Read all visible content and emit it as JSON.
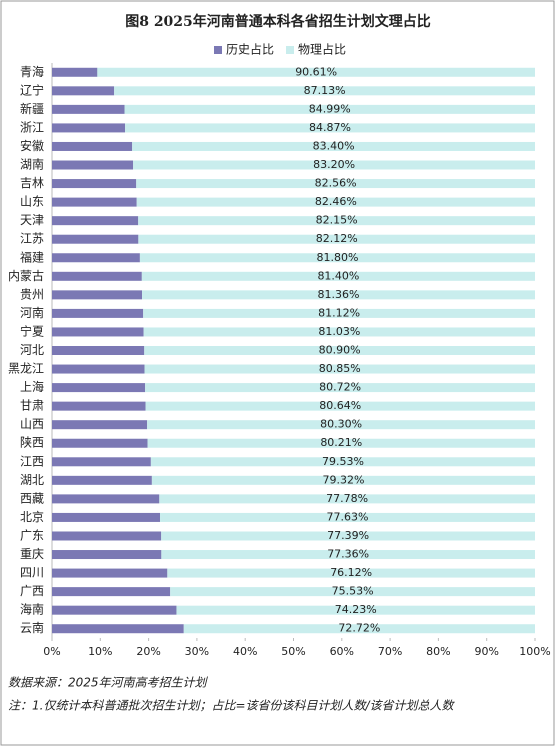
{
  "chart_data": {
    "type": "stacked_barh",
    "title": "图8 2025年河南普通本科各省招生计划文理占比",
    "categories": [
      "青海",
      "辽宁",
      "新疆",
      "浙江",
      "安徽",
      "湖南",
      "吉林",
      "山东",
      "天津",
      "江苏",
      "福建",
      "内蒙古",
      "贵州",
      "河南",
      "宁夏",
      "河北",
      "黑龙江",
      "上海",
      "甘肃",
      "山西",
      "陕西",
      "江西",
      "湖北",
      "西藏",
      "北京",
      "广东",
      "重庆",
      "四川",
      "广西",
      "海南",
      "云南"
    ],
    "series": [
      {
        "name": "历史占比",
        "color": "#7b78b4",
        "values": [
          9.39,
          12.87,
          15.01,
          15.13,
          16.6,
          16.8,
          17.44,
          17.54,
          17.85,
          17.88,
          18.2,
          18.6,
          18.64,
          18.88,
          18.97,
          19.1,
          19.15,
          19.28,
          19.36,
          19.7,
          19.79,
          20.47,
          20.68,
          22.22,
          22.37,
          22.61,
          22.64,
          23.88,
          24.47,
          25.77,
          27.28
        ]
      },
      {
        "name": "物理占比",
        "color": "#c9eded",
        "values": [
          90.61,
          87.13,
          84.99,
          84.87,
          83.4,
          83.2,
          82.56,
          82.46,
          82.15,
          82.12,
          81.8,
          81.4,
          81.36,
          81.12,
          81.03,
          80.9,
          80.85,
          80.72,
          80.64,
          80.3,
          80.21,
          79.53,
          79.32,
          77.78,
          77.63,
          77.39,
          77.36,
          76.12,
          75.53,
          74.23,
          72.72
        ],
        "value_labels": [
          "90.61%",
          "87.13%",
          "84.99%",
          "84.87%",
          "83.40%",
          "83.20%",
          "82.56%",
          "82.46%",
          "82.15%",
          "82.12%",
          "81.80%",
          "81.40%",
          "81.36%",
          "81.12%",
          "81.03%",
          "80.90%",
          "80.85%",
          "80.72%",
          "80.64%",
          "80.30%",
          "80.21%",
          "79.53%",
          "79.32%",
          "77.78%",
          "77.63%",
          "77.39%",
          "77.36%",
          "76.12%",
          "75.53%",
          "74.23%",
          "72.72%"
        ]
      }
    ],
    "xlim": [
      0,
      100
    ],
    "xticks": [
      {
        "value": 0,
        "label": "0%"
      },
      {
        "value": 10,
        "label": "10%"
      },
      {
        "value": 20,
        "label": "20%"
      },
      {
        "value": 30,
        "label": "30%"
      },
      {
        "value": 40,
        "label": "40%"
      },
      {
        "value": 50,
        "label": "50%"
      },
      {
        "value": 60,
        "label": "60%"
      },
      {
        "value": 70,
        "label": "70%"
      },
      {
        "value": 80,
        "label": "80%"
      },
      {
        "value": 90,
        "label": "90%"
      },
      {
        "value": 100,
        "label": "100%"
      }
    ],
    "legend": "top",
    "notes": [
      "数据来源：2025年河南高考招生计划",
      "注：1.仅统计本科普通批次招生计划；占比=该省份该科目计划人数/该省计划总人数"
    ]
  }
}
